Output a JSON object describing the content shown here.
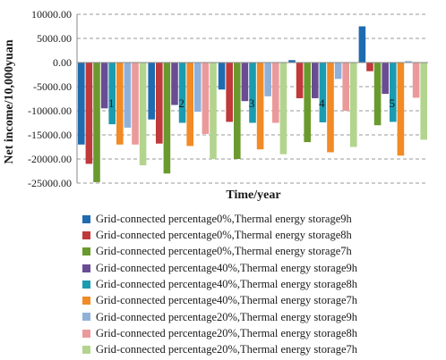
{
  "chart_data": {
    "type": "bar",
    "ylabel": "Net income/10,000yuan",
    "xlabel": "Time/year",
    "ylim": [
      -25000,
      10000
    ],
    "yticks": [
      "10000.00",
      "5000.00",
      "0.00",
      "-5000.00",
      "-10000.00",
      "-15000.00",
      "-20000.00",
      "-25000.00"
    ],
    "categories": [
      "1",
      "2",
      "3",
      "4",
      "5"
    ],
    "grid": "horizontal dashed",
    "legend_position": "bottom",
    "series": [
      {
        "name": "Grid-connected percentage0%,Thermal energy storage9h",
        "color": "#1f6bb0",
        "values": [
          -17000,
          -11800,
          -5600,
          500,
          7500
        ]
      },
      {
        "name": "Grid-connected percentage0%,Thermal energy storage8h",
        "color": "#c0393b",
        "values": [
          -21000,
          -16800,
          -12300,
          -7400,
          -1800
        ]
      },
      {
        "name": "Grid-connected percentage0%,Thermal energy storage7h",
        "color": "#6a9a2e",
        "values": [
          -24800,
          -23000,
          -20000,
          -16500,
          -13000
        ]
      },
      {
        "name": "Grid-connected percentage40%,Thermal energy storage9h",
        "color": "#6a4c93",
        "values": [
          -9500,
          -8800,
          -8000,
          -7400,
          -6500
        ]
      },
      {
        "name": "Grid-connected percentage40%,Thermal energy storage8h",
        "color": "#1a9bb0",
        "values": [
          -12800,
          -12500,
          -12500,
          -12400,
          -12300
        ]
      },
      {
        "name": "Grid-connected percentage40%,Thermal energy storage7h",
        "color": "#f28a25",
        "values": [
          -17000,
          -17300,
          -18000,
          -18600,
          -19300
        ]
      },
      {
        "name": "Grid-connected percentage20%,Thermal energy storage9h",
        "color": "#8fb0d9",
        "values": [
          -13500,
          -10200,
          -7000,
          -3400,
          300
        ]
      },
      {
        "name": "Grid-connected percentage20%,Thermal energy storage8h",
        "color": "#eb9a9b",
        "values": [
          -17000,
          -14800,
          -12500,
          -10000,
          -7300
        ]
      },
      {
        "name": "Grid-connected percentage20%,Thermal energy storage7h",
        "color": "#b3d48e",
        "values": [
          -21300,
          -20000,
          -19000,
          -17500,
          -16000
        ]
      }
    ]
  }
}
